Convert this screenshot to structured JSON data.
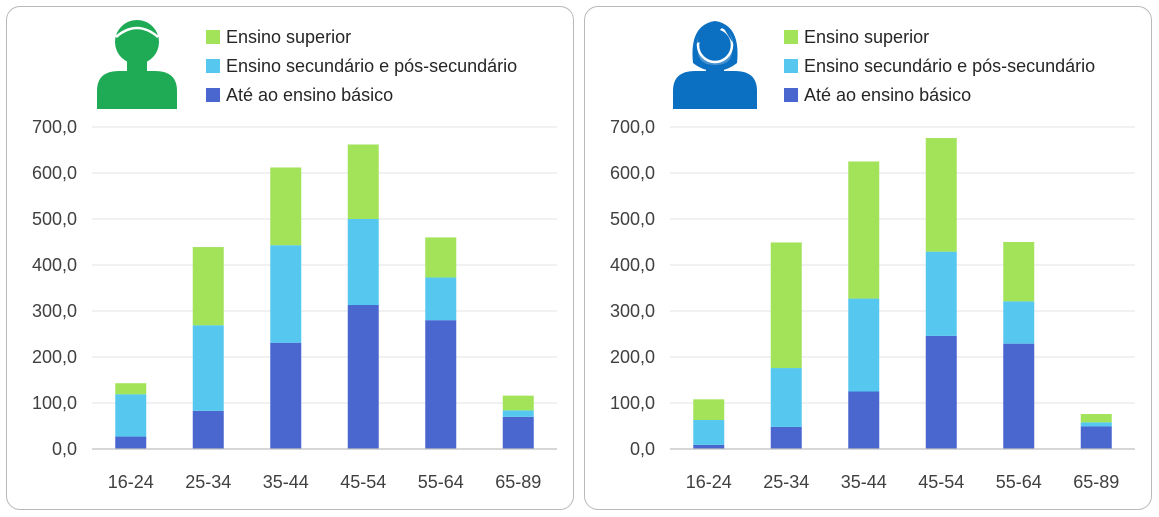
{
  "colors": {
    "basico": "#4a67cf",
    "secundario": "#56c8f0",
    "superior": "#a2e35a",
    "men_icon": "#1fab55",
    "women_icon": "#0b6fc2",
    "grid": "#e3e3e3",
    "axis": "#bfbfbf"
  },
  "chart_data": [
    {
      "type": "bar",
      "stacked": true,
      "icon": "man-icon",
      "categories": [
        "16-24",
        "25-34",
        "35-44",
        "45-54",
        "55-64",
        "65-89"
      ],
      "series": [
        {
          "name": "Até ao ensino básico",
          "values": [
            27,
            83,
            231,
            313,
            280,
            70
          ]
        },
        {
          "name": "Ensino secundário e pós-secundário",
          "values": [
            92,
            186,
            212,
            187,
            93,
            14
          ]
        },
        {
          "name": "Ensino superior",
          "values": [
            24,
            170,
            169,
            162,
            87,
            32
          ]
        }
      ],
      "ylim": [
        0,
        700
      ],
      "yticks": [
        "0,0",
        "100,0",
        "200,0",
        "300,0",
        "400,0",
        "500,0",
        "600,0",
        "700,0"
      ],
      "grid": true,
      "legend": "top-right"
    },
    {
      "type": "bar",
      "stacked": true,
      "icon": "woman-icon",
      "categories": [
        "16-24",
        "25-34",
        "35-44",
        "45-54",
        "55-64",
        "65-89"
      ],
      "series": [
        {
          "name": "Até ao ensino básico",
          "values": [
            9,
            48,
            125,
            246,
            229,
            49
          ]
        },
        {
          "name": "Ensino secundário e pós-secundário",
          "values": [
            54,
            128,
            202,
            183,
            92,
            9
          ]
        },
        {
          "name": "Ensino superior",
          "values": [
            45,
            273,
            298,
            247,
            129,
            18
          ]
        }
      ],
      "ylim": [
        0,
        700
      ],
      "yticks": [
        "0,0",
        "100,0",
        "200,0",
        "300,0",
        "400,0",
        "500,0",
        "600,0",
        "700,0"
      ],
      "grid": true,
      "legend": "top-right"
    }
  ]
}
